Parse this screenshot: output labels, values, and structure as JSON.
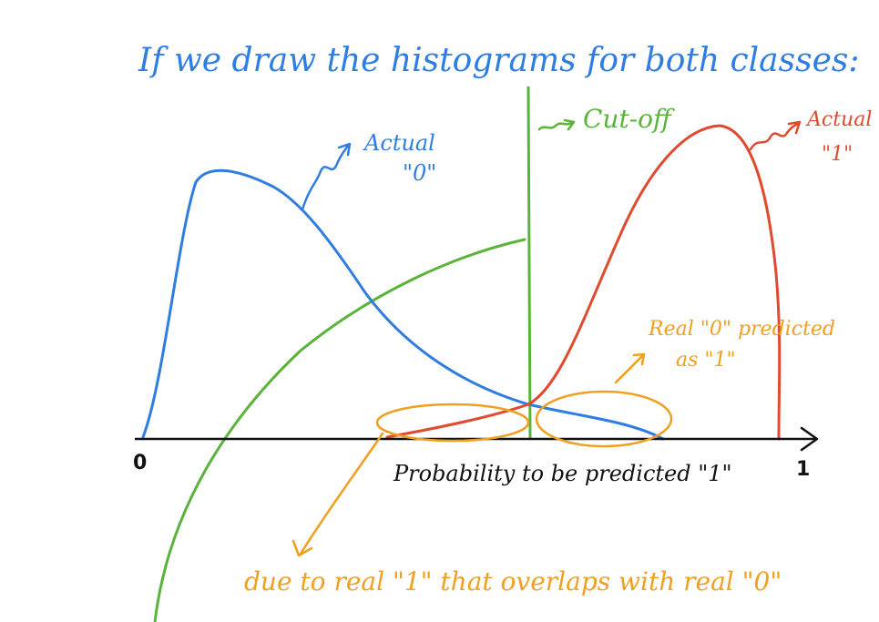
{
  "colors": {
    "blue": "#2f7de1",
    "red": "#e04a2f",
    "green": "#5ab43c",
    "orange": "#f0a020",
    "black": "#111111"
  },
  "title": "If we draw the histograms for both classes:",
  "labels": {
    "actual0_line1": "Actual",
    "actual0_line2": "\"0\"",
    "actual1_line1": "Actual",
    "actual1_line2": "\"1\"",
    "cutoff": "Cut-off",
    "x_axis": "Probability to be predicted \"1\"",
    "real0_line1": "Real \"0\" predicted",
    "real0_line2": "as \"1\"",
    "bottom_note": "due to real \"1\" that overlaps with real \"0\""
  },
  "axis": {
    "tick_min": "0",
    "tick_max": "1"
  }
}
